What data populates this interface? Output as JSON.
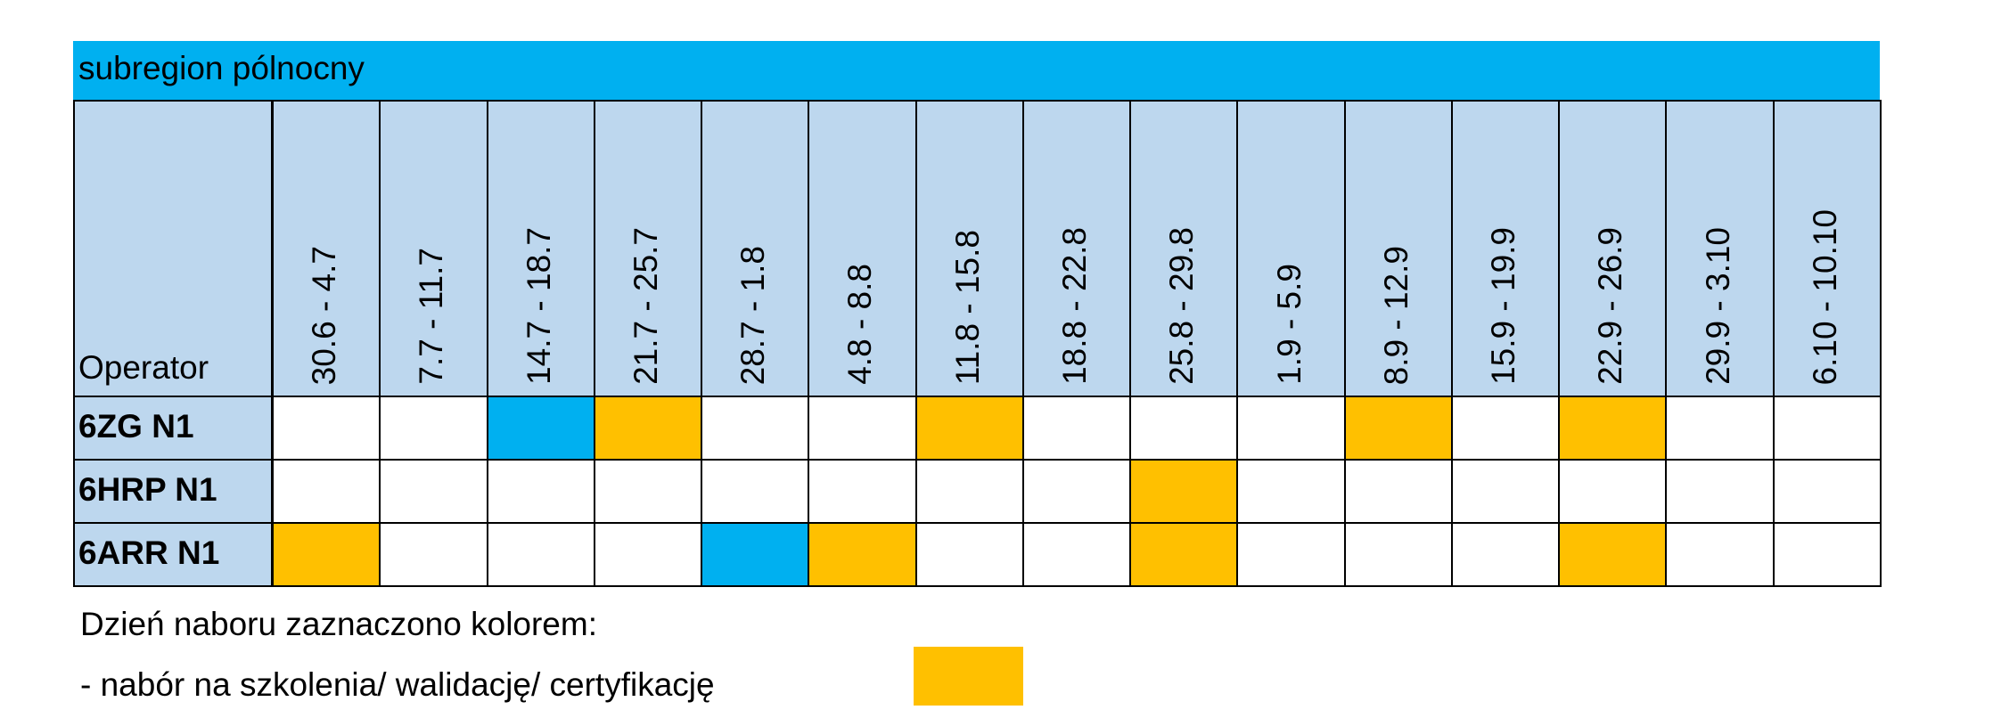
{
  "header": {
    "title": "subregion pólnocny",
    "title_color": "#00B0F0",
    "header_color": "#BDD7EE"
  },
  "table": {
    "operator_label": "Operator",
    "columns": [
      "30.6 - 4.7",
      "7.7 - 11.7",
      "14.7 - 18.7",
      "21.7 - 25.7",
      "28.7 - 1.8",
      "4.8 - 8.8",
      "11.8 - 15.8",
      "18.8 - 22.8",
      "25.8 - 29.8",
      "1.9 - 5.9",
      "8.9 - 12.9",
      "15.9 - 19.9",
      "22.9 - 26.9",
      "29.9 - 3.10",
      "6.10 - 10.10"
    ],
    "rows": [
      {
        "operator": "6ZG N1",
        "cells": [
          null,
          null,
          "#00B0F0",
          "#FFC000",
          null,
          null,
          "#FFC000",
          null,
          null,
          null,
          "#FFC000",
          null,
          "#FFC000",
          null,
          null
        ]
      },
      {
        "operator": "6HRP N1",
        "cells": [
          null,
          null,
          null,
          null,
          null,
          null,
          null,
          null,
          "#FFC000",
          null,
          null,
          null,
          null,
          null,
          null
        ]
      },
      {
        "operator": "6ARR N1",
        "cells": [
          "#FFC000",
          null,
          null,
          null,
          "#00B0F0",
          "#FFC000",
          null,
          null,
          "#FFC000",
          null,
          null,
          null,
          "#FFC000",
          null,
          null
        ]
      }
    ]
  },
  "legend": {
    "intro": "Dzień naboru zaznaczono kolorem:",
    "item": "- nabór na szkolenia/ walidację/ certyfikację",
    "item_color": "#FFC000"
  }
}
